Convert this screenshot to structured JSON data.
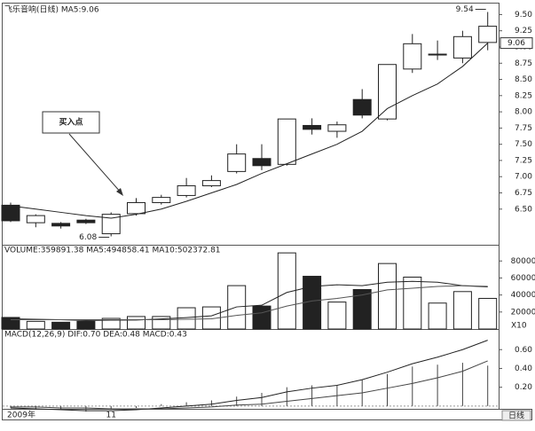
{
  "chart_data": [
    {
      "type": "candlestick",
      "title": "飞乐音响(日线) MA5:9.06",
      "open": [
        6.56,
        6.29,
        6.28,
        6.33,
        6.12,
        6.43,
        6.6,
        6.71,
        6.86,
        7.08,
        7.28,
        7.19,
        7.79,
        7.7,
        8.19,
        7.89,
        8.66,
        8.88,
        8.83,
        9.07
      ],
      "high": [
        6.6,
        6.42,
        6.3,
        6.35,
        6.45,
        6.67,
        6.72,
        6.98,
        7.02,
        7.5,
        7.5,
        7.89,
        7.9,
        7.85,
        8.35,
        8.73,
        9.2,
        9.1,
        9.25,
        9.54
      ],
      "low": [
        6.3,
        6.22,
        6.2,
        6.27,
        6.08,
        6.4,
        6.57,
        6.68,
        6.84,
        7.05,
        7.1,
        7.17,
        7.65,
        7.6,
        7.9,
        7.87,
        8.6,
        8.8,
        8.75,
        8.95
      ],
      "close": [
        6.32,
        6.4,
        6.24,
        6.29,
        6.42,
        6.6,
        6.68,
        6.86,
        6.94,
        7.35,
        7.17,
        7.89,
        7.73,
        7.8,
        7.95,
        8.73,
        9.05,
        8.89,
        9.16,
        9.32
      ],
      "series": [
        {
          "name": "MA5",
          "color": "#222222",
          "values": [
            6.55,
            6.5,
            6.45,
            6.4,
            6.36,
            6.42,
            6.5,
            6.62,
            6.75,
            6.88,
            7.05,
            7.2,
            7.35,
            7.5,
            7.7,
            8.05,
            8.25,
            8.43,
            8.7,
            9.06
          ]
        }
      ],
      "ylim": [
        5.95,
        9.67
      ],
      "yticks": [
        {
          "value": 6.5,
          "label": "6.50"
        },
        {
          "value": 6.75,
          "label": "6.75"
        },
        {
          "value": 7,
          "label": "7.00"
        },
        {
          "value": 7.25,
          "label": "7.25"
        },
        {
          "value": 7.5,
          "label": "7.50"
        },
        {
          "value": 7.75,
          "label": "7.75"
        },
        {
          "value": 8,
          "label": "8.00"
        },
        {
          "value": 8.25,
          "label": "8.25"
        },
        {
          "value": 8.5,
          "label": "8.50"
        },
        {
          "value": 8.75,
          "label": "8.75"
        },
        {
          "value": 9,
          "label": "9.00"
        },
        {
          "value": 9.25,
          "label": "9.25"
        },
        {
          "value": 9.5,
          "label": "9.50"
        }
      ],
      "high_label": {
        "value": 9.54,
        "label": "9.54"
      },
      "low_label": {
        "value": 6.08,
        "label": "6.08"
      },
      "last_label": {
        "value": 9.06,
        "label": "9.06"
      },
      "annotation": "买入点"
    },
    {
      "type": "volume",
      "title": "VOLUME:359891.38 MA5:494858.41 MA10:502372.81",
      "values": [
        13600,
        9000,
        8000,
        9000,
        12500,
        14700,
        14700,
        25000,
        26000,
        51000,
        27000,
        89500,
        62000,
        31700,
        46400,
        77000,
        61000,
        30500,
        44000,
        36000
      ],
      "series": [
        {
          "name": "MA5",
          "color": "#222222",
          "values": [
            12000,
            11500,
            11000,
            10000,
            10400,
            10600,
            11800,
            13400,
            15500,
            26000,
            28000,
            43000,
            50000,
            52000,
            51000,
            55000,
            56000,
            55000,
            51000,
            49486
          ]
        },
        {
          "name": "MA10",
          "color": "#555555",
          "values": [
            11000,
            11000,
            11000,
            11000,
            11000,
            11000,
            11000,
            11500,
            12000,
            16000,
            19000,
            27000,
            33000,
            36000,
            40000,
            46000,
            48000,
            50000,
            51000,
            50237
          ]
        }
      ],
      "ylim": [
        0,
        98000
      ],
      "yticks": [
        20000,
        40000,
        60000,
        80000
      ],
      "unit_label": "X10"
    },
    {
      "type": "macd",
      "title": "MACD(12,26,9) DIF:0.70 DEA:0.48 MACD:0.43",
      "categories": [
        "2009年",
        null,
        null,
        null,
        "11",
        null,
        null,
        null,
        null,
        null,
        null,
        null,
        null,
        null,
        null,
        null,
        null,
        null,
        null,
        null
      ],
      "series": [
        {
          "name": "DIF",
          "color": "#222222",
          "values": [
            -0.02,
            -0.03,
            -0.04,
            -0.05,
            -0.05,
            -0.04,
            -0.02,
            0.0,
            0.02,
            0.06,
            0.09,
            0.15,
            0.19,
            0.22,
            0.28,
            0.36,
            0.45,
            0.52,
            0.6,
            0.7
          ]
        },
        {
          "name": "DEA",
          "color": "#444444",
          "values": [
            -0.01,
            -0.01,
            -0.02,
            -0.02,
            -0.03,
            -0.03,
            -0.03,
            -0.02,
            -0.01,
            0.01,
            0.02,
            0.05,
            0.08,
            0.11,
            0.14,
            0.19,
            0.24,
            0.3,
            0.37,
            0.48
          ]
        }
      ],
      "macd": [
        -0.02,
        -0.04,
        -0.04,
        -0.06,
        -0.04,
        -0.02,
        0.02,
        0.04,
        0.06,
        0.1,
        0.14,
        0.2,
        0.22,
        0.22,
        0.28,
        0.34,
        0.42,
        0.44,
        0.46,
        0.43
      ],
      "ylim": [
        -0.03,
        0.81
      ],
      "yticks": [
        {
          "value": 0.2,
          "label": "0.20"
        },
        {
          "value": 0.4,
          "label": "0.40"
        },
        {
          "value": 0.6,
          "label": "0.60"
        }
      ],
      "period_label": "日线"
    }
  ]
}
